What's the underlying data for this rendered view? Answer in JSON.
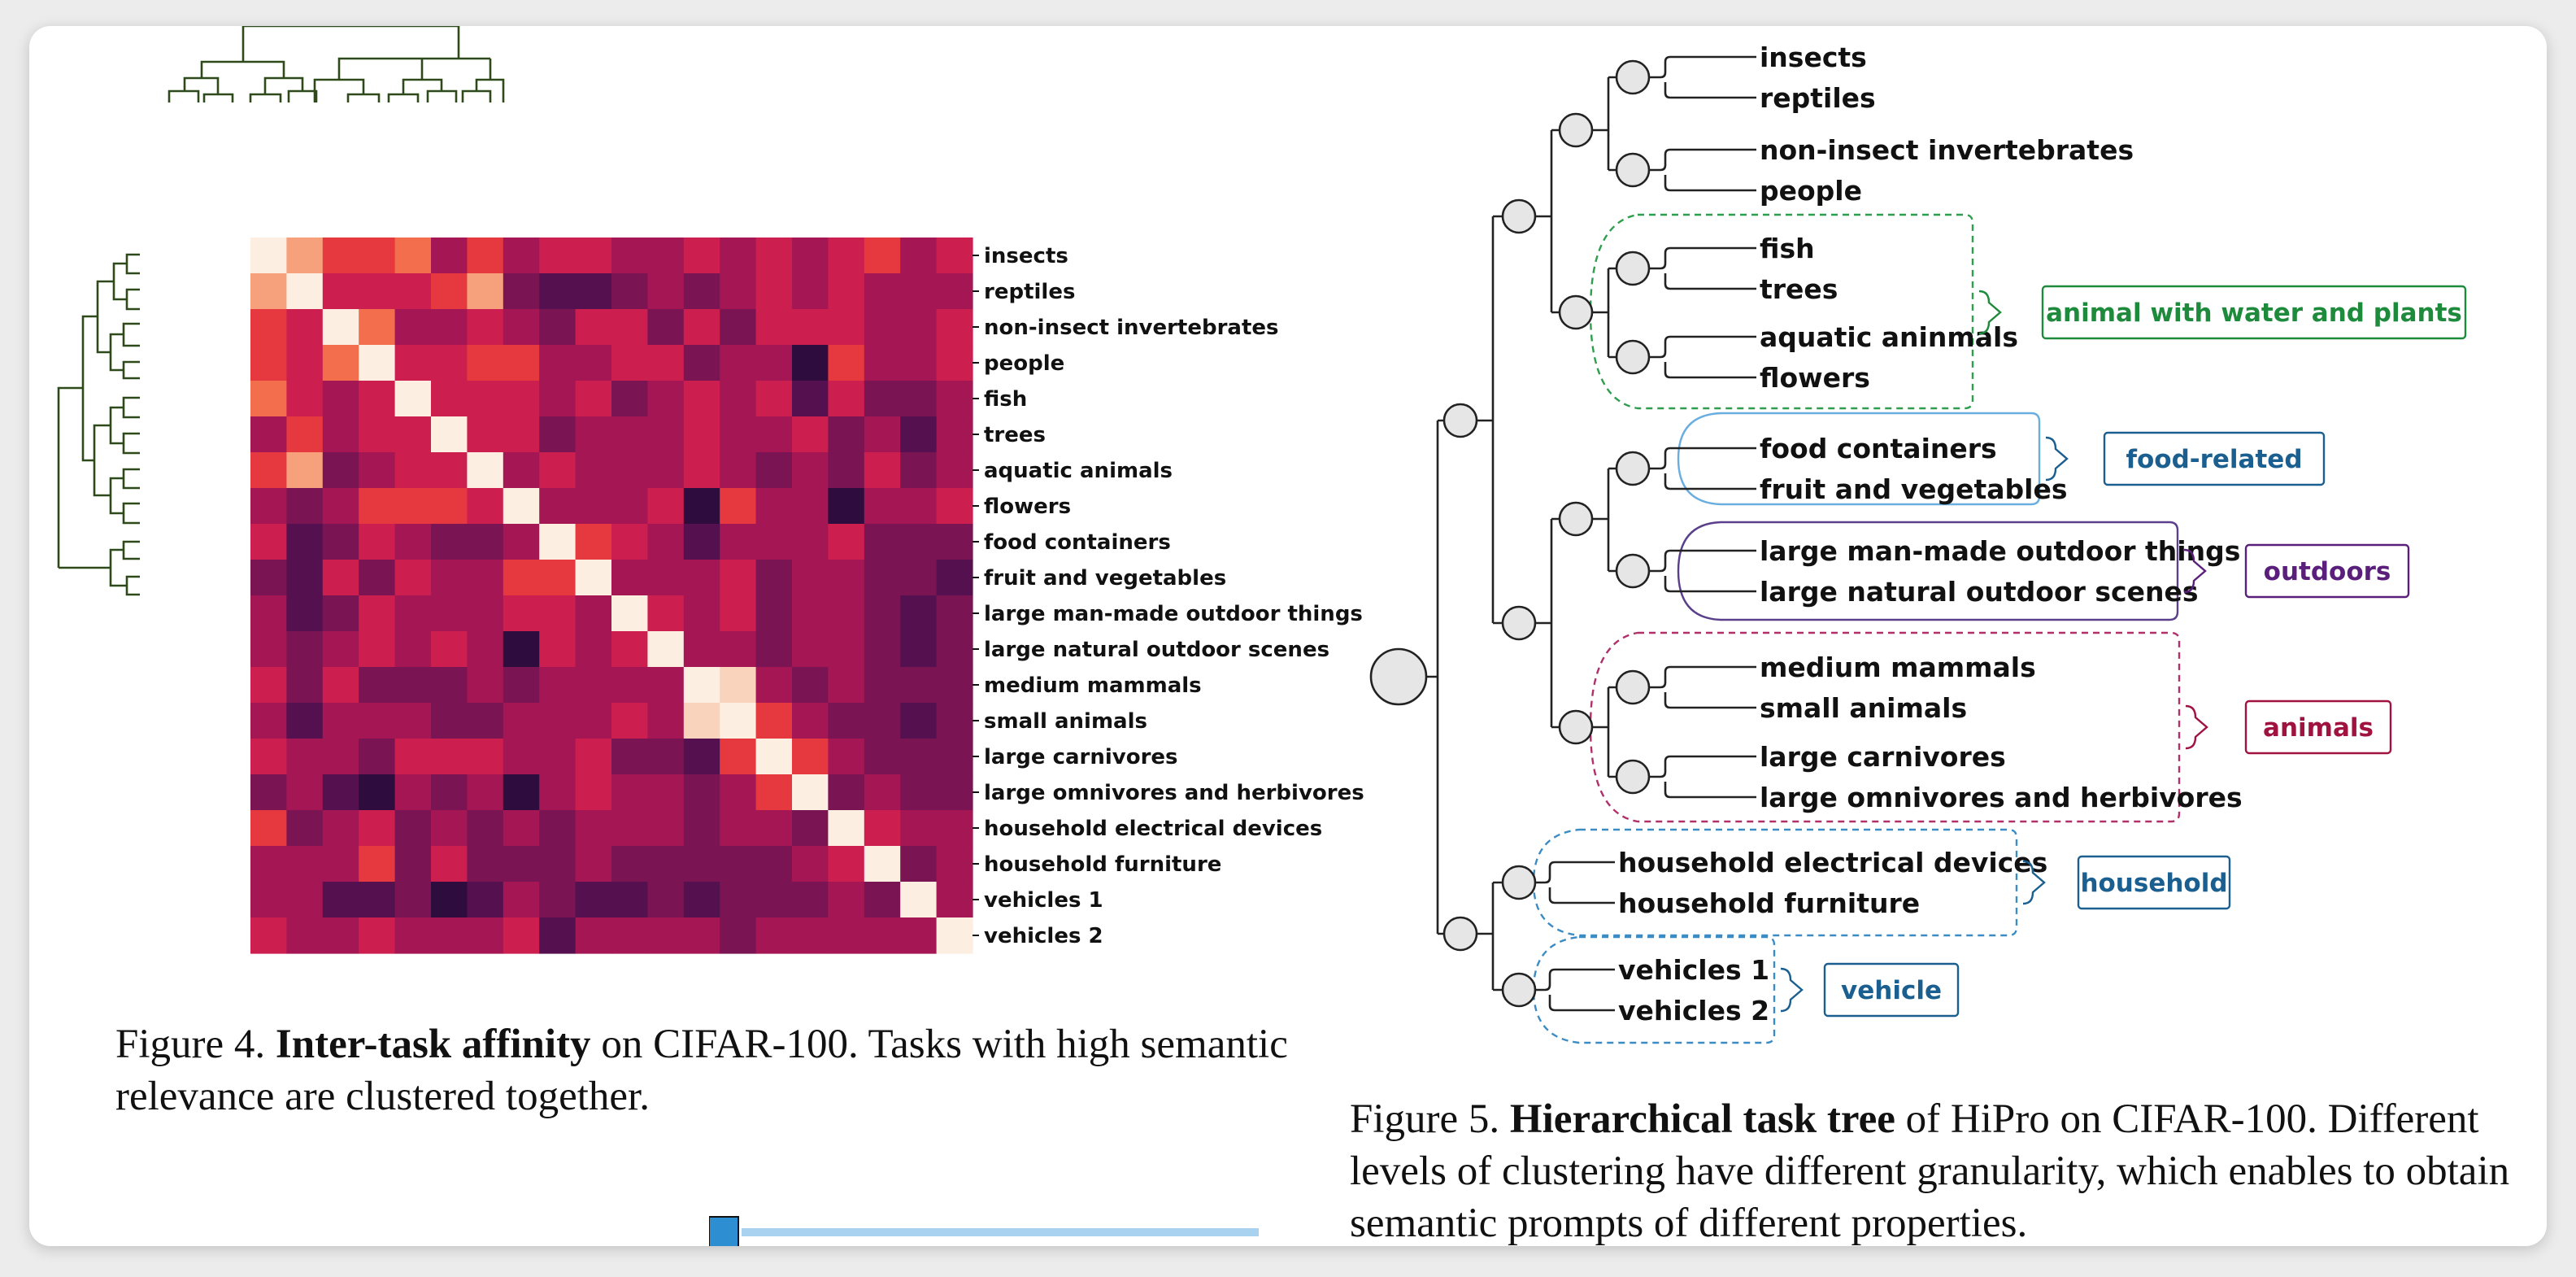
{
  "figure4": {
    "caption": {
      "prefix": "Figure 4.",
      "bold": "Inter-task affinity",
      "rest": "on CIFAR-100. Tasks with high semantic relevance are clustered together."
    },
    "chart_data": {
      "type": "heatmap",
      "labels": [
        "insects",
        "reptiles",
        "non-insect invertebrates",
        "people",
        "fish",
        "trees",
        "aquatic animals",
        "flowers",
        "food containers",
        "fruit and vegetables",
        "large man-made outdoor things",
        "large natural outdoor scenes",
        "medium mammals",
        "small animals",
        "large carnivores",
        "large omnivores and herbivores",
        "household electrical devices",
        "household furniture",
        "vehicles 1",
        "vehicles 2"
      ],
      "palette": [
        "#0e0a18",
        "#2f0c3e",
        "#55114f",
        "#7b1453",
        "#a41654",
        "#cc1f4f",
        "#e6393f",
        "#f26e4c",
        "#f6a07c",
        "#fad3bd",
        "#fdeee2"
      ],
      "value_scale": "0 (dark) to 10 (light)",
      "values": [
        [
          10,
          8,
          6,
          6,
          7,
          4,
          6,
          4,
          5,
          5,
          4,
          4,
          5,
          4,
          5,
          4,
          5,
          6,
          4,
          5
        ],
        [
          8,
          10,
          5,
          5,
          5,
          6,
          8,
          3,
          2,
          2,
          3,
          4,
          3,
          4,
          5,
          4,
          5,
          4,
          4,
          4
        ],
        [
          6,
          5,
          10,
          7,
          4,
          4,
          5,
          4,
          3,
          5,
          5,
          3,
          5,
          3,
          5,
          5,
          5,
          4,
          4,
          5
        ],
        [
          6,
          5,
          7,
          10,
          5,
          5,
          6,
          6,
          4,
          4,
          5,
          5,
          3,
          4,
          4,
          1,
          6,
          4,
          4,
          5
        ],
        [
          7,
          5,
          4,
          5,
          10,
          5,
          5,
          5,
          4,
          5,
          3,
          4,
          5,
          4,
          5,
          2,
          5,
          3,
          3,
          4
        ],
        [
          4,
          6,
          4,
          5,
          5,
          10,
          5,
          5,
          3,
          4,
          4,
          4,
          5,
          4,
          4,
          5,
          3,
          4,
          2,
          4
        ],
        [
          6,
          8,
          3,
          4,
          5,
          5,
          10,
          4,
          5,
          4,
          4,
          4,
          5,
          4,
          3,
          4,
          3,
          5,
          3,
          4
        ],
        [
          4,
          3,
          4,
          6,
          6,
          6,
          5,
          10,
          4,
          4,
          4,
          5,
          1,
          6,
          4,
          4,
          1,
          4,
          4,
          5
        ],
        [
          5,
          2,
          3,
          5,
          4,
          3,
          3,
          4,
          10,
          6,
          5,
          4,
          2,
          4,
          4,
          4,
          5,
          3,
          3,
          3
        ],
        [
          3,
          2,
          5,
          3,
          5,
          4,
          4,
          6,
          6,
          10,
          4,
          4,
          4,
          5,
          3,
          4,
          4,
          3,
          3,
          2
        ],
        [
          4,
          2,
          3,
          5,
          4,
          4,
          4,
          5,
          5,
          4,
          10,
          5,
          4,
          5,
          3,
          4,
          4,
          3,
          2,
          3
        ],
        [
          4,
          3,
          4,
          5,
          4,
          5,
          4,
          1,
          5,
          4,
          5,
          10,
          4,
          4,
          3,
          4,
          4,
          3,
          2,
          3
        ],
        [
          5,
          3,
          5,
          3,
          3,
          3,
          4,
          3,
          4,
          4,
          4,
          4,
          10,
          9,
          4,
          3,
          4,
          3,
          3,
          3
        ],
        [
          4,
          2,
          4,
          4,
          4,
          3,
          3,
          4,
          4,
          4,
          5,
          4,
          9,
          10,
          6,
          4,
          3,
          3,
          2,
          3
        ],
        [
          5,
          4,
          4,
          3,
          5,
          5,
          5,
          4,
          4,
          5,
          3,
          3,
          2,
          6,
          10,
          6,
          4,
          3,
          3,
          3
        ],
        [
          3,
          4,
          2,
          1,
          4,
          3,
          4,
          1,
          4,
          5,
          4,
          4,
          3,
          4,
          6,
          10,
          3,
          4,
          3,
          3
        ],
        [
          6,
          3,
          4,
          5,
          3,
          4,
          3,
          4,
          3,
          4,
          4,
          4,
          3,
          4,
          4,
          3,
          10,
          5,
          4,
          4
        ],
        [
          4,
          4,
          4,
          6,
          3,
          5,
          3,
          3,
          3,
          4,
          3,
          3,
          3,
          3,
          3,
          4,
          5,
          10,
          3,
          4
        ],
        [
          4,
          4,
          2,
          2,
          3,
          1,
          2,
          4,
          3,
          2,
          2,
          3,
          2,
          3,
          3,
          3,
          4,
          3,
          10,
          4
        ],
        [
          5,
          4,
          4,
          5,
          4,
          4,
          4,
          5,
          2,
          4,
          4,
          4,
          4,
          3,
          4,
          4,
          4,
          4,
          4,
          10
        ]
      ]
    }
  },
  "figure5": {
    "caption": {
      "prefix": "Figure 5.",
      "bold": "Hierarchical task tree",
      "rest": "of HiPro on CIFAR-100. Different levels of clustering have different granularity, which enables to obtain semantic prompts of different properties."
    },
    "leaves": [
      "insects",
      "reptiles",
      "non-insect invertebrates",
      "people",
      "fish",
      "trees",
      "aquatic aninmals",
      "flowers",
      "food containers",
      "fruit and vegetables",
      "large man-made outdoor things",
      "large natural outdoor scenes",
      "medium mammals",
      "small animals",
      "large carnivores",
      "large omnivores and herbivores",
      "household electrical devices",
      "household furniture",
      "vehicles 1",
      "vehicles 2"
    ],
    "groups": [
      {
        "label": "animal with water and plants",
        "color": "#1e8a3c"
      },
      {
        "label": "food-related",
        "color": "#1a5f8f"
      },
      {
        "label": "outdoors",
        "color": "#5a1f7a"
      },
      {
        "label": "animals",
        "color": "#a0123f"
      },
      {
        "label": "household",
        "color": "#1a5f8f"
      },
      {
        "label": "vehicle",
        "color": "#1a5f8f"
      }
    ]
  }
}
